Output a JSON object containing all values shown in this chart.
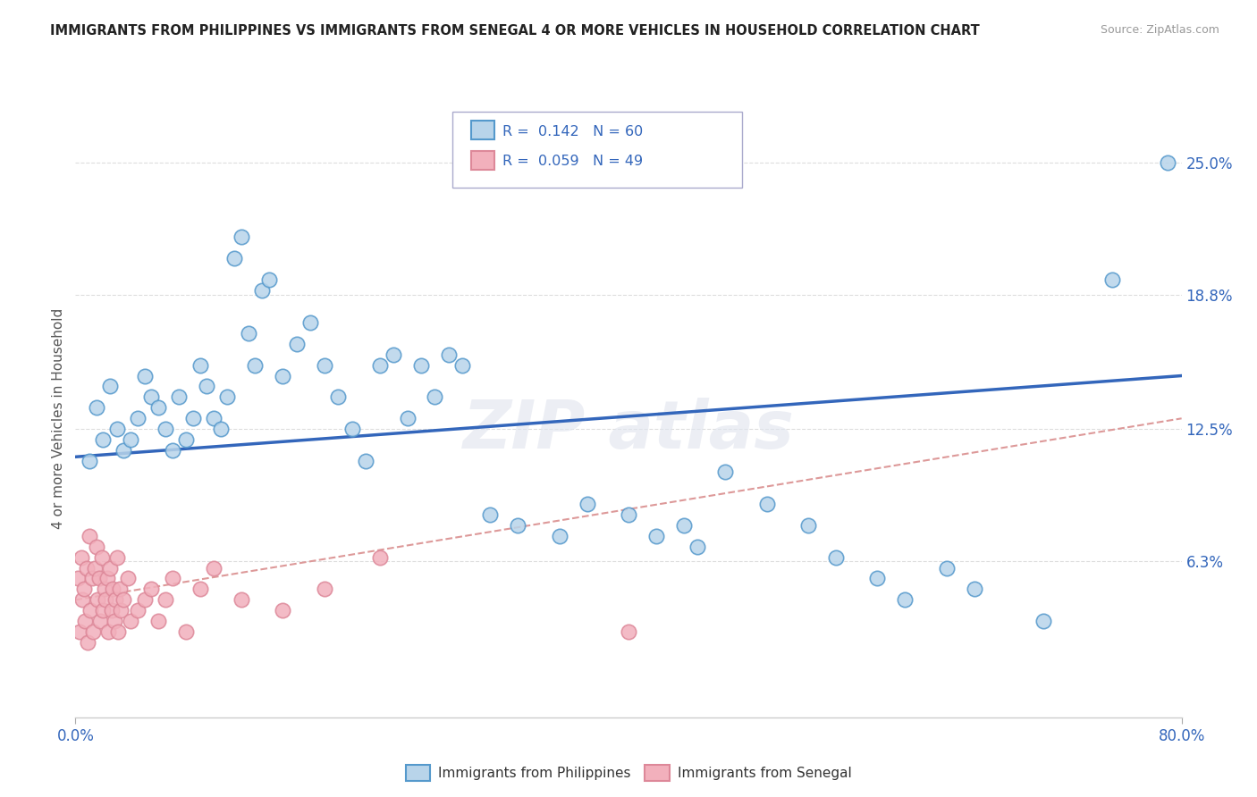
{
  "title": "IMMIGRANTS FROM PHILIPPINES VS IMMIGRANTS FROM SENEGAL 4 OR MORE VEHICLES IN HOUSEHOLD CORRELATION CHART",
  "source": "Source: ZipAtlas.com",
  "ylabel": "4 or more Vehicles in Household",
  "ytick_vals": [
    6.3,
    12.5,
    18.8,
    25.0
  ],
  "xlim": [
    0.0,
    80.0
  ],
  "ylim": [
    -1.0,
    27.0
  ],
  "r_philippines": 0.142,
  "n_philippines": 60,
  "r_senegal": 0.059,
  "n_senegal": 49,
  "color_philippines": "#b8d4ea",
  "color_senegal": "#f2b0bc",
  "color_philippines_edge": "#5599cc",
  "color_senegal_edge": "#dd8899",
  "color_philippines_line": "#3366bb",
  "color_senegal_line": "#dd9999",
  "philippines_x": [
    1.0,
    1.5,
    2.0,
    2.5,
    3.0,
    3.5,
    4.0,
    4.5,
    5.0,
    5.5,
    6.0,
    6.5,
    7.0,
    7.5,
    8.0,
    8.5,
    9.0,
    9.5,
    10.0,
    10.5,
    11.0,
    11.5,
    12.0,
    12.5,
    13.0,
    13.5,
    14.0,
    15.0,
    16.0,
    17.0,
    18.0,
    19.0,
    20.0,
    21.0,
    22.0,
    23.0,
    24.0,
    25.0,
    26.0,
    27.0,
    28.0,
    30.0,
    32.0,
    35.0,
    37.0,
    40.0,
    42.0,
    44.0,
    45.0,
    47.0,
    50.0,
    53.0,
    55.0,
    58.0,
    60.0,
    63.0,
    65.0,
    70.0,
    75.0,
    79.0
  ],
  "philippines_y": [
    11.0,
    13.5,
    12.0,
    14.5,
    12.5,
    11.5,
    12.0,
    13.0,
    15.0,
    14.0,
    13.5,
    12.5,
    11.5,
    14.0,
    12.0,
    13.0,
    15.5,
    14.5,
    13.0,
    12.5,
    14.0,
    20.5,
    21.5,
    17.0,
    15.5,
    19.0,
    19.5,
    15.0,
    16.5,
    17.5,
    15.5,
    14.0,
    12.5,
    11.0,
    15.5,
    16.0,
    13.0,
    15.5,
    14.0,
    16.0,
    15.5,
    8.5,
    8.0,
    7.5,
    9.0,
    8.5,
    7.5,
    8.0,
    7.0,
    10.5,
    9.0,
    8.0,
    6.5,
    5.5,
    4.5,
    6.0,
    5.0,
    3.5,
    19.5,
    25.0
  ],
  "senegal_x": [
    0.2,
    0.3,
    0.4,
    0.5,
    0.6,
    0.7,
    0.8,
    0.9,
    1.0,
    1.1,
    1.2,
    1.3,
    1.4,
    1.5,
    1.6,
    1.7,
    1.8,
    1.9,
    2.0,
    2.1,
    2.2,
    2.3,
    2.4,
    2.5,
    2.6,
    2.7,
    2.8,
    2.9,
    3.0,
    3.1,
    3.2,
    3.3,
    3.5,
    3.8,
    4.0,
    4.5,
    5.0,
    5.5,
    6.0,
    6.5,
    7.0,
    8.0,
    9.0,
    10.0,
    12.0,
    15.0,
    18.0,
    22.0,
    40.0
  ],
  "senegal_y": [
    5.5,
    3.0,
    6.5,
    4.5,
    5.0,
    3.5,
    6.0,
    2.5,
    7.5,
    4.0,
    5.5,
    3.0,
    6.0,
    7.0,
    4.5,
    5.5,
    3.5,
    6.5,
    4.0,
    5.0,
    4.5,
    5.5,
    3.0,
    6.0,
    4.0,
    5.0,
    3.5,
    4.5,
    6.5,
    3.0,
    5.0,
    4.0,
    4.5,
    5.5,
    3.5,
    4.0,
    4.5,
    5.0,
    3.5,
    4.5,
    5.5,
    3.0,
    5.0,
    6.0,
    4.5,
    4.0,
    5.0,
    6.5,
    3.0
  ]
}
